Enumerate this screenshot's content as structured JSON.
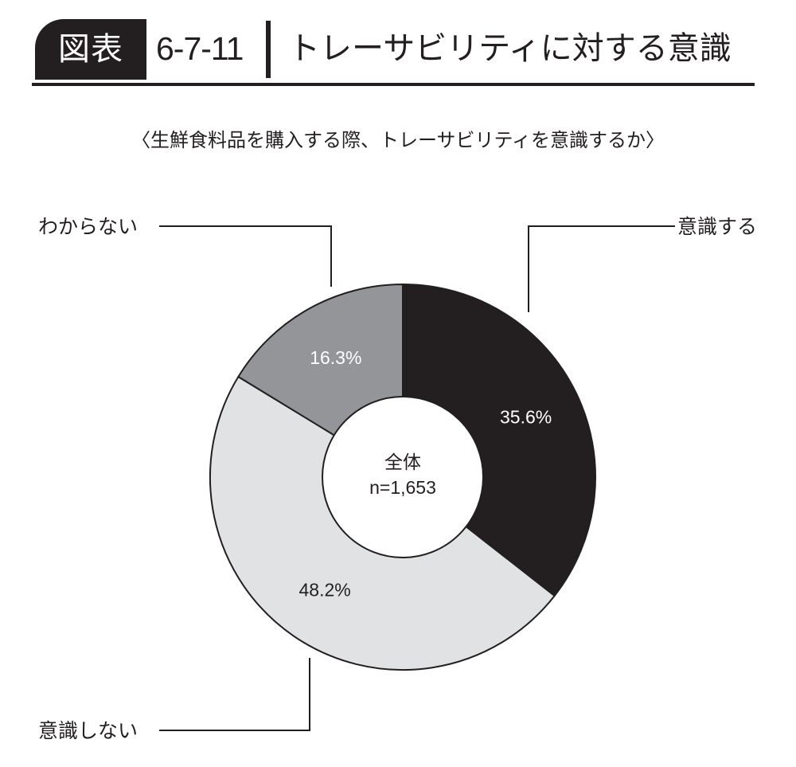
{
  "header": {
    "badge": "図表",
    "figure_number": "6-7-11",
    "title": "トレーサビリティに対する意識"
  },
  "subtitle": "〈生鮮食料品を購入する際、トレーサビリティを意識するか〉",
  "chart_data": {
    "type": "pie",
    "subtype": "donut",
    "center_label": "全体",
    "sample_size": "n=1,653",
    "slices": [
      {
        "label": "意識する",
        "value": 35.6,
        "value_label": "35.6%",
        "color": "#231f20",
        "text_color": "#ffffff"
      },
      {
        "label": "意識しない",
        "value": 48.2,
        "value_label": "48.2%",
        "color": "#e1e2e4",
        "text_color": "#231f20"
      },
      {
        "label": "わからない",
        "value": 16.3,
        "value_label": "16.3%",
        "color": "#939598",
        "text_color": "#ffffff"
      }
    ],
    "start": "12 o'clock",
    "direction": "clockwise",
    "legend": "callout labels"
  }
}
